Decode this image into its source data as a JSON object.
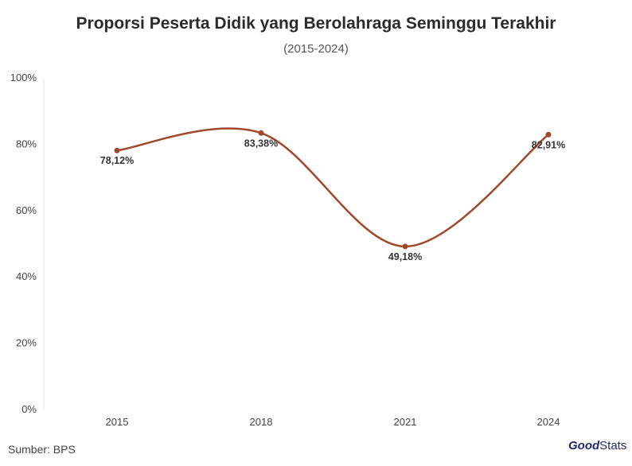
{
  "chart_data": {
    "type": "line",
    "title": "Proporsi Peserta Didik yang Berolahraga Seminggu Terakhir",
    "subtitle": "(2015-2024)",
    "categories": [
      "2015",
      "2018",
      "2021",
      "2024"
    ],
    "series": [
      {
        "name": "Proporsi",
        "values": [
          78.12,
          83.38,
          49.18,
          82.91
        ],
        "labels": [
          "78,12%",
          "83,38%",
          "49,18%",
          "82,91%"
        ]
      }
    ],
    "ylim": [
      0,
      100
    ],
    "yticks": [
      0,
      20,
      40,
      60,
      80,
      100
    ],
    "ytick_labels": [
      "0%",
      "20%",
      "40%",
      "60%",
      "80%",
      "100%"
    ],
    "line_color": "#a0482a",
    "xlabel": "",
    "ylabel": ""
  },
  "footer": {
    "source": "Sumber: BPS"
  },
  "brand": {
    "good": "Good",
    "stats": "Stats",
    "color": "#1f2a6b"
  }
}
